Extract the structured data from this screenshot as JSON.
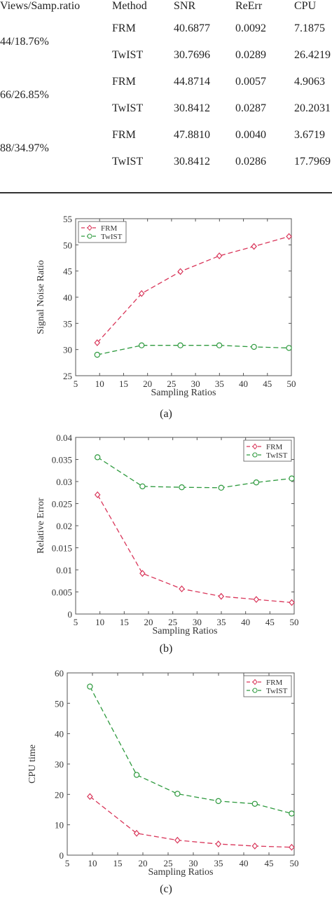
{
  "table": {
    "headers": [
      "Views/Samp.ratio",
      "Method",
      "SNR",
      "ReErr",
      "CPU"
    ],
    "groups": [
      {
        "label": "44/18.76%",
        "rows": [
          [
            "FRM",
            "40.6877",
            "0.0092",
            "7.1875"
          ],
          [
            "TwIST",
            "30.7696",
            "0.0289",
            "26.4219"
          ]
        ]
      },
      {
        "label": "66/26.85%",
        "rows": [
          [
            "FRM",
            "44.8714",
            "0.0057",
            "4.9063"
          ],
          [
            "TwIST",
            "30.8412",
            "0.0287",
            "20.2031"
          ]
        ]
      },
      {
        "label": "88/34.97%",
        "rows": [
          [
            "FRM",
            "47.8810",
            "0.0040",
            "3.6719"
          ],
          [
            "TwIST",
            "30.8412",
            "0.0286",
            "17.7969"
          ]
        ]
      }
    ]
  },
  "colors": {
    "frm": "#d9365a",
    "twist": "#2e9a3e",
    "axis": "#555555"
  },
  "chart_data": [
    {
      "type": "line",
      "caption": "(a)",
      "xlabel": "Sampling Ratios",
      "ylabel": "Signal Noise Ratio",
      "xlim": [
        5,
        50
      ],
      "ylim": [
        25,
        55
      ],
      "xticks": [
        5,
        10,
        15,
        20,
        25,
        30,
        35,
        40,
        45,
        50
      ],
      "yticks": [
        25,
        30,
        35,
        40,
        45,
        50,
        55
      ],
      "legend": "top-left",
      "series": [
        {
          "name": "FRM",
          "x": [
            9.5,
            18.76,
            26.85,
            34.97,
            42.2,
            49.5
          ],
          "y": [
            31.3,
            40.7,
            44.9,
            47.9,
            49.7,
            51.6
          ]
        },
        {
          "name": "TwIST",
          "x": [
            9.5,
            18.76,
            26.85,
            34.97,
            42.2,
            49.5
          ],
          "y": [
            29.0,
            30.8,
            30.8,
            30.8,
            30.5,
            30.3
          ]
        }
      ]
    },
    {
      "type": "line",
      "caption": "(b)",
      "xlabel": "Sampling Ratios",
      "ylabel": "Relative Error",
      "xlim": [
        5,
        50
      ],
      "ylim": [
        0,
        0.04
      ],
      "xticks": [
        5,
        10,
        15,
        20,
        25,
        30,
        35,
        40,
        45,
        50
      ],
      "yticks": [
        0,
        0.005,
        0.01,
        0.015,
        0.02,
        0.025,
        0.03,
        0.035,
        0.04
      ],
      "ytick_labels": [
        "0",
        "0.005",
        "0.01",
        "0.015",
        "0.02",
        "0.025",
        "0.03",
        "0.035",
        "0.04"
      ],
      "legend": "top-right",
      "series": [
        {
          "name": "FRM",
          "x": [
            9.5,
            18.76,
            26.85,
            34.97,
            42.2,
            49.5
          ],
          "y": [
            0.027,
            0.0092,
            0.0057,
            0.004,
            0.0033,
            0.0026
          ]
        },
        {
          "name": "TwIST",
          "x": [
            9.5,
            18.76,
            26.85,
            34.97,
            42.2,
            49.5
          ],
          "y": [
            0.0355,
            0.0289,
            0.0287,
            0.0286,
            0.0298,
            0.0307
          ]
        }
      ]
    },
    {
      "type": "line",
      "caption": "(c)",
      "xlabel": "Sampling Ratios",
      "ylabel": "CPU time",
      "xlim": [
        5,
        50
      ],
      "ylim": [
        0,
        60
      ],
      "xticks": [
        5,
        10,
        15,
        20,
        25,
        30,
        35,
        40,
        45,
        50
      ],
      "yticks": [
        0,
        10,
        20,
        30,
        40,
        50,
        60
      ],
      "legend": "top-right",
      "series": [
        {
          "name": "FRM",
          "x": [
            9.5,
            18.76,
            26.85,
            34.97,
            42.2,
            49.5
          ],
          "y": [
            19.3,
            7.19,
            4.91,
            3.67,
            3.0,
            2.6
          ]
        },
        {
          "name": "TwIST",
          "x": [
            9.5,
            18.76,
            26.85,
            34.97,
            42.2,
            49.5
          ],
          "y": [
            55.5,
            26.42,
            20.2,
            17.8,
            16.9,
            13.7
          ]
        }
      ]
    }
  ]
}
